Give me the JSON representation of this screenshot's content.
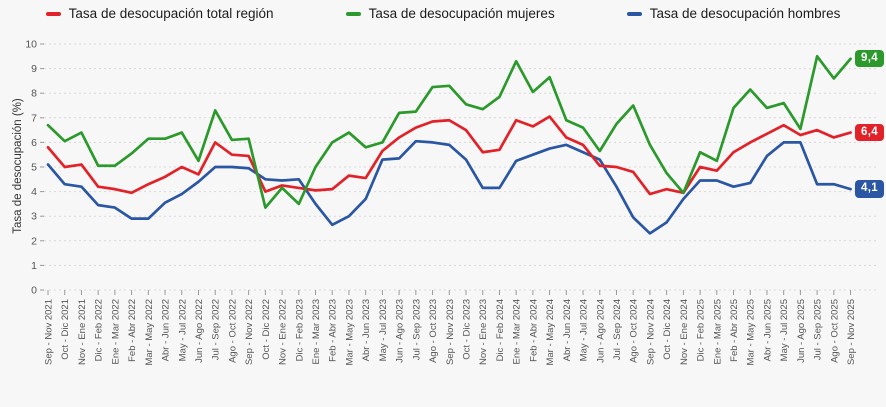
{
  "legend": {
    "items": [
      {
        "label": "Tasa de desocupación total región"
      },
      {
        "label": "Tasa de desocupación mujeres"
      },
      {
        "label": "Tasa de desocupación hombres"
      }
    ]
  },
  "y_axis": {
    "title": "Tasa de desocupación (%)"
  },
  "chart_data": {
    "type": "line",
    "title": "",
    "ylabel": "Tasa de desocupación (%)",
    "xlabel": "",
    "ylim": [
      0,
      10
    ],
    "yticks": [
      0,
      1,
      2,
      3,
      4,
      5,
      6,
      7,
      8,
      9,
      10
    ],
    "grid": true,
    "legend_position": "top",
    "categories": [
      "Sep - Nov 2021",
      "Oct - Dic 2021",
      "Nov - Ene 2021",
      "Dic - Feb 2022",
      "Ene - Mar 2022",
      "Feb - Abr 2022",
      "Mar - May 2022",
      "Abr - Jun 2022",
      "May - Jul 2022",
      "Jun - Ago 2022",
      "Jul - Sep 2022",
      "Ago - Oct 2022",
      "Sep - Nov 2022",
      "Oct - Dic 2022",
      "Nov - Ene 2022",
      "Dic - Feb 2023",
      "Ene - Mar 2023",
      "Feb - Abr 2023",
      "Mar - May 2023",
      "Abr - Jun 2023",
      "May - Jul 2023",
      "Jun - Ago 2023",
      "Jul - Sep 2023",
      "Ago - Oct 2023",
      "Sep - Nov 2023",
      "Oct - Dic 2023",
      "Nov - Ene 2023",
      "Dic - Feb 2024",
      "Ene - Mar 2024",
      "Feb - Abr 2024",
      "Mar - May 2024",
      "Abr - Jun 2024",
      "May - Jul 2024",
      "Jun - Ago 2024",
      "Jul - Sep 2024",
      "Ago - Oct 2024",
      "Sep - Nov 2024",
      "Oct - Dic 2024",
      "Nov - Ene 2024",
      "Dic - Feb 2025",
      "Ene - Mar 2025",
      "Feb - Abr 2025",
      "Mar - May 2025",
      "Abr - Jun 2025",
      "May - Jul 2025",
      "Jun - Ago 2025",
      "Jul - Sep 2025",
      "Ago - Oct 2025",
      "Sep - Nov 2025"
    ],
    "series": [
      {
        "name": "Tasa de desocupación total región",
        "color": "#e12229",
        "values": [
          5.8,
          5.0,
          5.1,
          4.2,
          4.1,
          3.95,
          4.3,
          4.6,
          5.0,
          4.7,
          6.0,
          5.5,
          5.45,
          4.0,
          4.25,
          4.15,
          4.05,
          4.1,
          4.65,
          4.55,
          5.65,
          6.2,
          6.6,
          6.85,
          6.9,
          6.5,
          5.6,
          5.7,
          6.9,
          6.65,
          7.05,
          6.2,
          5.9,
          5.05,
          5.0,
          4.8,
          3.9,
          4.1,
          3.95,
          5.0,
          4.85,
          5.6,
          6.0,
          6.35,
          6.7,
          6.3,
          6.5,
          6.2,
          6.4
        ]
      },
      {
        "name": "Tasa de desocupación mujeres",
        "color": "#2b992b",
        "values": [
          6.7,
          6.05,
          6.4,
          5.05,
          5.05,
          5.55,
          6.15,
          6.15,
          6.4,
          5.25,
          7.3,
          6.1,
          6.15,
          3.35,
          4.15,
          3.5,
          5.0,
          6.0,
          6.4,
          5.8,
          6.0,
          7.2,
          7.25,
          8.25,
          8.3,
          7.55,
          7.35,
          7.85,
          9.3,
          8.05,
          8.65,
          6.9,
          6.6,
          5.65,
          6.75,
          7.5,
          5.9,
          4.75,
          3.95,
          5.6,
          5.25,
          7.4,
          8.15,
          7.4,
          7.6,
          6.55,
          9.5,
          8.6,
          9.4
        ]
      },
      {
        "name": "Tasa de desocupación hombres",
        "color": "#2a56a3",
        "values": [
          5.1,
          4.3,
          4.2,
          3.45,
          3.35,
          2.9,
          2.9,
          3.55,
          3.9,
          4.4,
          5.0,
          5.0,
          4.95,
          4.5,
          4.45,
          4.5,
          3.5,
          2.65,
          3.0,
          3.7,
          5.3,
          5.35,
          6.05,
          6.0,
          5.9,
          5.3,
          4.15,
          4.15,
          5.25,
          5.5,
          5.75,
          5.9,
          5.6,
          5.3,
          4.2,
          2.95,
          2.3,
          2.75,
          3.7,
          4.45,
          4.45,
          4.2,
          4.35,
          5.45,
          6.0,
          6.0,
          4.3,
          4.3,
          4.1
        ]
      }
    ],
    "end_labels": [
      {
        "series": "Tasa de desocupación mujeres",
        "value": "9,4"
      },
      {
        "series": "Tasa de desocupación total región",
        "value": "6,4"
      },
      {
        "series": "Tasa de desocupación hombres",
        "value": "4,1"
      }
    ]
  }
}
